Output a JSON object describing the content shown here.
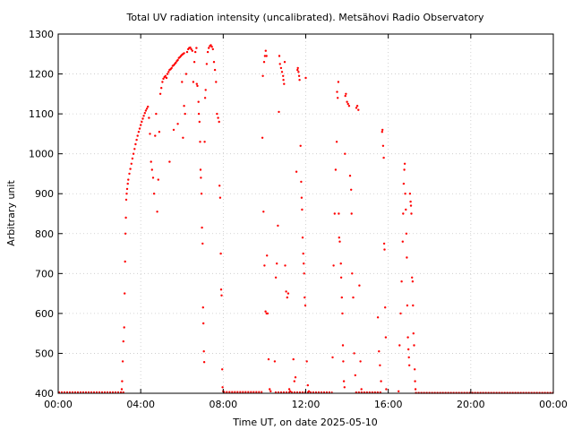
{
  "chart_data": {
    "type": "scatter",
    "title": "Total UV radiation intensity (uncalibrated). Metsähovi Radio Observatory",
    "xlabel": "Time UT, on date 2025-05-10",
    "ylabel": "Arbitrary unit",
    "xlim": [
      0,
      24
    ],
    "ylim": [
      400,
      1300
    ],
    "x_ticks": [
      {
        "value": 0,
        "label": "00:00"
      },
      {
        "value": 4,
        "label": "04:00"
      },
      {
        "value": 8,
        "label": "08:00"
      },
      {
        "value": 12,
        "label": "12:00"
      },
      {
        "value": 16,
        "label": "16:00"
      },
      {
        "value": 20,
        "label": "20:00"
      },
      {
        "value": 24,
        "label": "00:00"
      }
    ],
    "y_ticks": [
      400,
      500,
      600,
      700,
      800,
      900,
      1000,
      1100,
      1200,
      1300
    ],
    "grid": true,
    "marker_color": "#ff0000",
    "baseline_segments": [
      {
        "x_start": 0.0,
        "x_end": 3.2,
        "y": 402
      },
      {
        "x_start": 8.0,
        "x_end": 9.9,
        "y": 403
      },
      {
        "x_start": 10.5,
        "x_end": 13.3,
        "y": 402
      },
      {
        "x_start": 14.4,
        "x_end": 15.7,
        "y": 402
      },
      {
        "x_start": 17.3,
        "x_end": 24.0,
        "y": 401
      }
    ],
    "series": [
      {
        "points": [
          [
            3.05,
            402
          ],
          [
            3.08,
            410
          ],
          [
            3.1,
            430
          ],
          [
            3.13,
            480
          ],
          [
            3.16,
            530
          ],
          [
            3.2,
            565
          ],
          [
            3.22,
            650
          ],
          [
            3.24,
            730
          ],
          [
            3.26,
            800
          ],
          [
            3.28,
            840
          ],
          [
            3.3,
            885
          ],
          [
            3.32,
            900
          ],
          [
            3.34,
            912
          ],
          [
            3.37,
            925
          ],
          [
            3.4,
            935
          ],
          [
            3.45,
            950
          ],
          [
            3.5,
            962
          ],
          [
            3.55,
            975
          ],
          [
            3.6,
            988
          ],
          [
            3.65,
            1000
          ],
          [
            3.7,
            1012
          ],
          [
            3.75,
            1024
          ],
          [
            3.8,
            1035
          ],
          [
            3.85,
            1045
          ],
          [
            3.9,
            1055
          ],
          [
            3.95,
            1063
          ],
          [
            4.0,
            1072
          ],
          [
            4.05,
            1080
          ],
          [
            4.1,
            1088
          ],
          [
            4.15,
            1095
          ],
          [
            4.2,
            1102
          ],
          [
            4.25,
            1108
          ],
          [
            4.3,
            1113
          ],
          [
            4.35,
            1118
          ],
          [
            4.4,
            1090
          ],
          [
            4.45,
            1050
          ],
          [
            4.5,
            980
          ],
          [
            4.55,
            960
          ],
          [
            4.6,
            940
          ],
          [
            4.65,
            900
          ],
          [
            4.7,
            1045
          ],
          [
            4.75,
            1100
          ],
          [
            4.8,
            855
          ],
          [
            4.85,
            935
          ],
          [
            4.9,
            1055
          ],
          [
            4.95,
            1150
          ],
          [
            5.0,
            1165
          ],
          [
            5.05,
            1180
          ],
          [
            5.1,
            1188
          ],
          [
            5.15,
            1192
          ],
          [
            5.2,
            1195
          ],
          [
            5.25,
            1190
          ],
          [
            5.3,
            1200
          ],
          [
            5.35,
            1205
          ],
          [
            5.4,
            1210
          ],
          [
            5.45,
            1212
          ],
          [
            5.5,
            1215
          ],
          [
            5.55,
            1220
          ],
          [
            5.6,
            1222
          ],
          [
            5.65,
            1225
          ],
          [
            5.7,
            1228
          ],
          [
            5.75,
            1232
          ],
          [
            5.8,
            1235
          ],
          [
            5.85,
            1240
          ],
          [
            5.9,
            1242
          ],
          [
            5.95,
            1245
          ],
          [
            6.0,
            1248
          ],
          [
            6.05,
            1250
          ],
          [
            6.1,
            1252
          ],
          [
            5.4,
            980
          ],
          [
            5.6,
            1060
          ],
          [
            5.8,
            1075
          ],
          [
            6.0,
            1180
          ],
          [
            6.05,
            1040
          ],
          [
            6.1,
            1120
          ],
          [
            6.15,
            1100
          ],
          [
            6.2,
            1200
          ],
          [
            6.25,
            1255
          ],
          [
            6.3,
            1262
          ],
          [
            6.35,
            1265
          ],
          [
            6.4,
            1266
          ],
          [
            6.45,
            1262
          ],
          [
            6.5,
            1258
          ],
          [
            6.55,
            1180
          ],
          [
            6.6,
            1230
          ],
          [
            6.65,
            1255
          ],
          [
            6.7,
            1265
          ],
          [
            6.72,
            1175
          ],
          [
            6.75,
            1170
          ],
          [
            6.8,
            1130
          ],
          [
            6.82,
            1100
          ],
          [
            6.85,
            1080
          ],
          [
            6.88,
            1030
          ],
          [
            6.9,
            960
          ],
          [
            6.92,
            940
          ],
          [
            6.95,
            900
          ],
          [
            6.97,
            815
          ],
          [
            7.0,
            775
          ],
          [
            7.02,
            615
          ],
          [
            7.04,
            575
          ],
          [
            7.06,
            505
          ],
          [
            7.08,
            478
          ],
          [
            7.1,
            1030
          ],
          [
            7.12,
            1140
          ],
          [
            7.15,
            1160
          ],
          [
            7.2,
            1225
          ],
          [
            7.25,
            1255
          ],
          [
            7.3,
            1265
          ],
          [
            7.35,
            1270
          ],
          [
            7.4,
            1272
          ],
          [
            7.45,
            1268
          ],
          [
            7.5,
            1262
          ],
          [
            7.55,
            1230
          ],
          [
            7.6,
            1210
          ],
          [
            7.65,
            1180
          ],
          [
            7.7,
            1100
          ],
          [
            7.75,
            1090
          ],
          [
            7.8,
            1080
          ],
          [
            7.82,
            920
          ],
          [
            7.85,
            890
          ],
          [
            7.88,
            750
          ],
          [
            7.9,
            660
          ],
          [
            7.92,
            645
          ],
          [
            7.95,
            460
          ],
          [
            7.97,
            415
          ],
          [
            8.0,
            405
          ],
          [
            9.9,
            1040
          ],
          [
            9.95,
            855
          ],
          [
            10.0,
            720
          ],
          [
            10.05,
            605
          ],
          [
            10.1,
            600
          ],
          [
            9.92,
            1195
          ],
          [
            9.98,
            1230
          ],
          [
            10.02,
            1245
          ],
          [
            10.06,
            1258
          ],
          [
            10.1,
            1245
          ],
          [
            10.12,
            745
          ],
          [
            10.15,
            600
          ],
          [
            10.2,
            485
          ],
          [
            10.25,
            410
          ],
          [
            10.3,
            405
          ],
          [
            10.5,
            480
          ],
          [
            10.55,
            690
          ],
          [
            10.6,
            725
          ],
          [
            10.65,
            820
          ],
          [
            10.7,
            1105
          ],
          [
            10.72,
            1245
          ],
          [
            10.75,
            1225
          ],
          [
            10.8,
            1215
          ],
          [
            10.85,
            1205
          ],
          [
            10.9,
            1195
          ],
          [
            10.92,
            1185
          ],
          [
            10.95,
            1175
          ],
          [
            10.98,
            1230
          ],
          [
            11.0,
            720
          ],
          [
            11.05,
            655
          ],
          [
            11.1,
            640
          ],
          [
            11.15,
            650
          ],
          [
            11.2,
            410
          ],
          [
            11.25,
            405
          ],
          [
            11.4,
            485
          ],
          [
            11.45,
            430
          ],
          [
            11.5,
            440
          ],
          [
            11.55,
            955
          ],
          [
            11.6,
            1210
          ],
          [
            11.62,
            1215
          ],
          [
            11.65,
            1205
          ],
          [
            11.68,
            1195
          ],
          [
            11.7,
            1185
          ],
          [
            11.75,
            1020
          ],
          [
            11.78,
            930
          ],
          [
            11.8,
            890
          ],
          [
            11.82,
            860
          ],
          [
            11.85,
            790
          ],
          [
            11.88,
            750
          ],
          [
            11.9,
            725
          ],
          [
            11.92,
            700
          ],
          [
            11.95,
            640
          ],
          [
            11.98,
            620
          ],
          [
            12.0,
            1190
          ],
          [
            12.05,
            480
          ],
          [
            12.1,
            420
          ],
          [
            12.15,
            405
          ],
          [
            13.3,
            490
          ],
          [
            13.35,
            720
          ],
          [
            13.4,
            850
          ],
          [
            13.45,
            960
          ],
          [
            13.5,
            1030
          ],
          [
            13.52,
            1155
          ],
          [
            13.55,
            1140
          ],
          [
            13.58,
            1180
          ],
          [
            13.6,
            850
          ],
          [
            13.62,
            790
          ],
          [
            13.65,
            780
          ],
          [
            13.7,
            725
          ],
          [
            13.72,
            690
          ],
          [
            13.75,
            640
          ],
          [
            13.78,
            600
          ],
          [
            13.8,
            520
          ],
          [
            13.82,
            480
          ],
          [
            13.85,
            430
          ],
          [
            13.88,
            415
          ],
          [
            13.9,
            1000
          ],
          [
            13.92,
            1145
          ],
          [
            13.95,
            1150
          ],
          [
            14.0,
            1130
          ],
          [
            14.05,
            1125
          ],
          [
            14.1,
            1120
          ],
          [
            14.15,
            945
          ],
          [
            14.2,
            910
          ],
          [
            14.22,
            850
          ],
          [
            14.25,
            700
          ],
          [
            14.3,
            640
          ],
          [
            14.35,
            500
          ],
          [
            14.4,
            445
          ],
          [
            14.45,
            1115
          ],
          [
            14.5,
            1120
          ],
          [
            14.55,
            1110
          ],
          [
            14.6,
            670
          ],
          [
            14.65,
            480
          ],
          [
            14.7,
            410
          ],
          [
            15.5,
            590
          ],
          [
            15.55,
            505
          ],
          [
            15.6,
            470
          ],
          [
            15.65,
            430
          ],
          [
            15.7,
            1055
          ],
          [
            15.72,
            1060
          ],
          [
            15.75,
            1020
          ],
          [
            15.78,
            990
          ],
          [
            15.8,
            775
          ],
          [
            15.82,
            760
          ],
          [
            15.85,
            615
          ],
          [
            15.88,
            540
          ],
          [
            15.9,
            410
          ],
          [
            16.5,
            405
          ],
          [
            16.55,
            520
          ],
          [
            16.6,
            600
          ],
          [
            16.65,
            680
          ],
          [
            16.7,
            780
          ],
          [
            16.72,
            850
          ],
          [
            16.75,
            925
          ],
          [
            16.78,
            960
          ],
          [
            16.8,
            975
          ],
          [
            16.82,
            900
          ],
          [
            16.85,
            860
          ],
          [
            16.88,
            800
          ],
          [
            16.9,
            740
          ],
          [
            16.92,
            620
          ],
          [
            16.95,
            540
          ],
          [
            16.98,
            510
          ],
          [
            17.0,
            490
          ],
          [
            17.02,
            470
          ],
          [
            17.05,
            900
          ],
          [
            17.08,
            880
          ],
          [
            17.1,
            870
          ],
          [
            17.12,
            850
          ],
          [
            17.15,
            690
          ],
          [
            17.18,
            680
          ],
          [
            17.2,
            620
          ],
          [
            17.22,
            550
          ],
          [
            17.25,
            520
          ],
          [
            17.28,
            460
          ],
          [
            17.3,
            430
          ],
          [
            17.32,
            410
          ]
        ]
      }
    ]
  }
}
